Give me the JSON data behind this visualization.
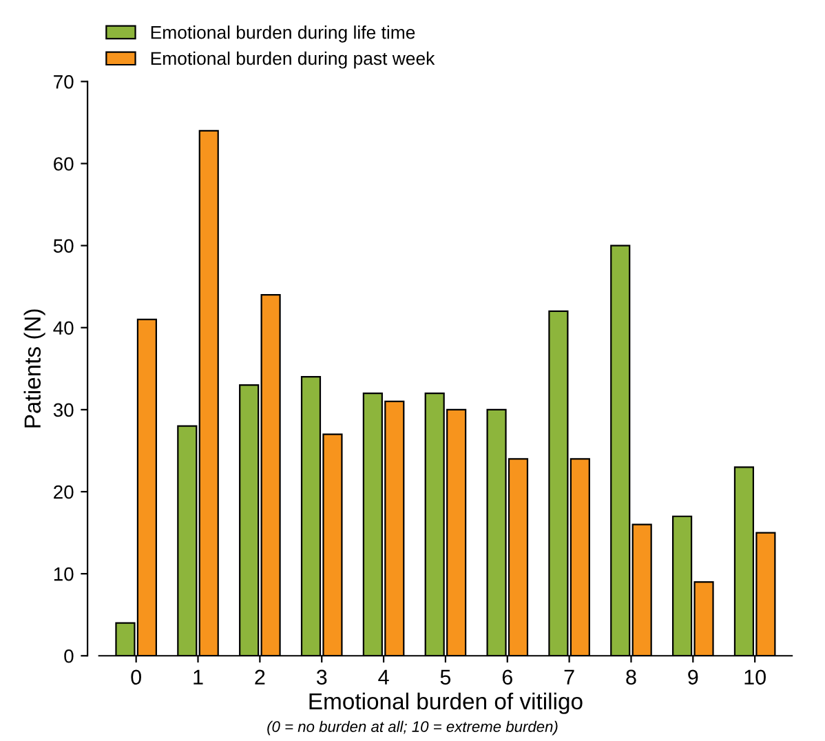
{
  "chart_data": {
    "type": "bar",
    "xlabel": "Emotional burden of vitiligo",
    "ylabel": "Patients (N)",
    "annotations": [
      "(0 = no burden at all; 10 = extreme burden)"
    ],
    "categories": [
      "0",
      "1",
      "2",
      "3",
      "4",
      "5",
      "6",
      "7",
      "8",
      "9",
      "10"
    ],
    "series": [
      {
        "name": "Emotional burden during life time",
        "color": "#8db53c",
        "values": [
          4,
          28,
          33,
          34,
          32,
          32,
          30,
          42,
          50,
          17,
          23
        ]
      },
      {
        "name": "Emotional burden during past week",
        "color": "#f7941d",
        "values": [
          41,
          64,
          44,
          27,
          31,
          30,
          24,
          24,
          16,
          9,
          15
        ]
      }
    ],
    "ylim": [
      0,
      70
    ],
    "yticks": [
      0,
      10,
      20,
      30,
      40,
      50,
      60,
      70
    ],
    "grid": false,
    "legend": "top left"
  }
}
